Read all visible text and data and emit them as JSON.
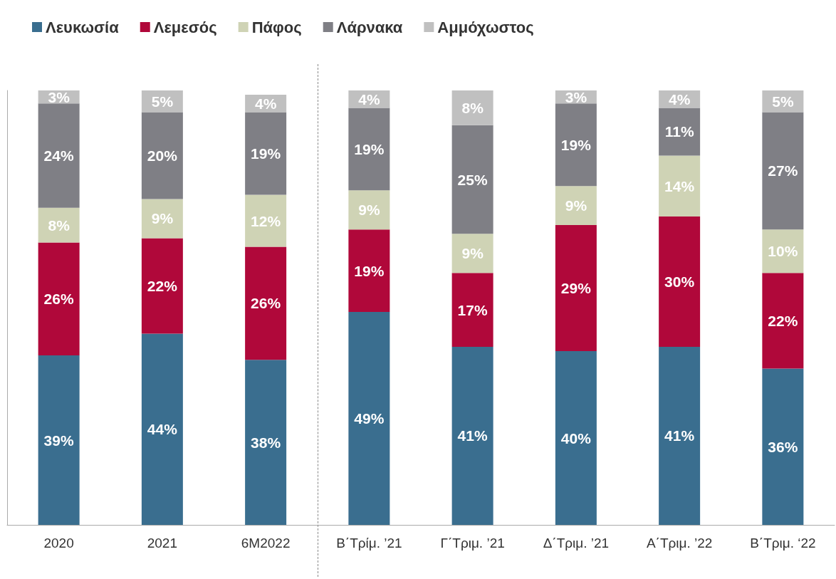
{
  "chart_data": {
    "type": "bar",
    "stacked": true,
    "legend": "top left",
    "grid": false,
    "categories": [
      "2020",
      "2021",
      "6M2022",
      "Β΄Τρίμ. ’21",
      "Γ΄Τριμ. ’21",
      "Δ΄Τριμ. ’21",
      "Α΄Τριμ. ’22",
      "Β΄Τριμ. ‘22"
    ],
    "series": [
      {
        "name": "Λευκωσία",
        "color": "#3a6e8f",
        "values": [
          39,
          44,
          38,
          49,
          41,
          40,
          41,
          36
        ],
        "value_labels": [
          "39%",
          "44%",
          "38%",
          "49%",
          "41%",
          "40%",
          "41%",
          "36%"
        ]
      },
      {
        "name": "Λεμεσός",
        "color": "#b0083a",
        "values": [
          26,
          22,
          26,
          19,
          17,
          29,
          30,
          22
        ],
        "value_labels": [
          "26%",
          "22%",
          "26%",
          "19%",
          "17%",
          "29%",
          "30%",
          "22%"
        ]
      },
      {
        "name": "Πάφος",
        "color": "#cfd3b5",
        "values": [
          8,
          9,
          12,
          9,
          9,
          9,
          14,
          10
        ],
        "value_labels": [
          "8%",
          "9%",
          "12%",
          "9%",
          "9%",
          "9%",
          "14%",
          "10%"
        ]
      },
      {
        "name": "Λάρνακα",
        "color": "#7f7f85",
        "values": [
          24,
          20,
          19,
          19,
          25,
          19,
          11,
          27
        ],
        "value_labels": [
          "24%",
          "20%",
          "19%",
          "19%",
          "25%",
          "19%",
          "11%",
          "27%"
        ]
      },
      {
        "name": "Αμμόχωστος",
        "color": "#c0c0c0",
        "values": [
          3,
          5,
          4,
          4,
          8,
          3,
          4,
          5
        ],
        "value_labels": [
          "3%",
          "5%",
          "4%",
          "4%",
          "8%",
          "3%",
          "4%",
          "5%"
        ]
      }
    ]
  }
}
